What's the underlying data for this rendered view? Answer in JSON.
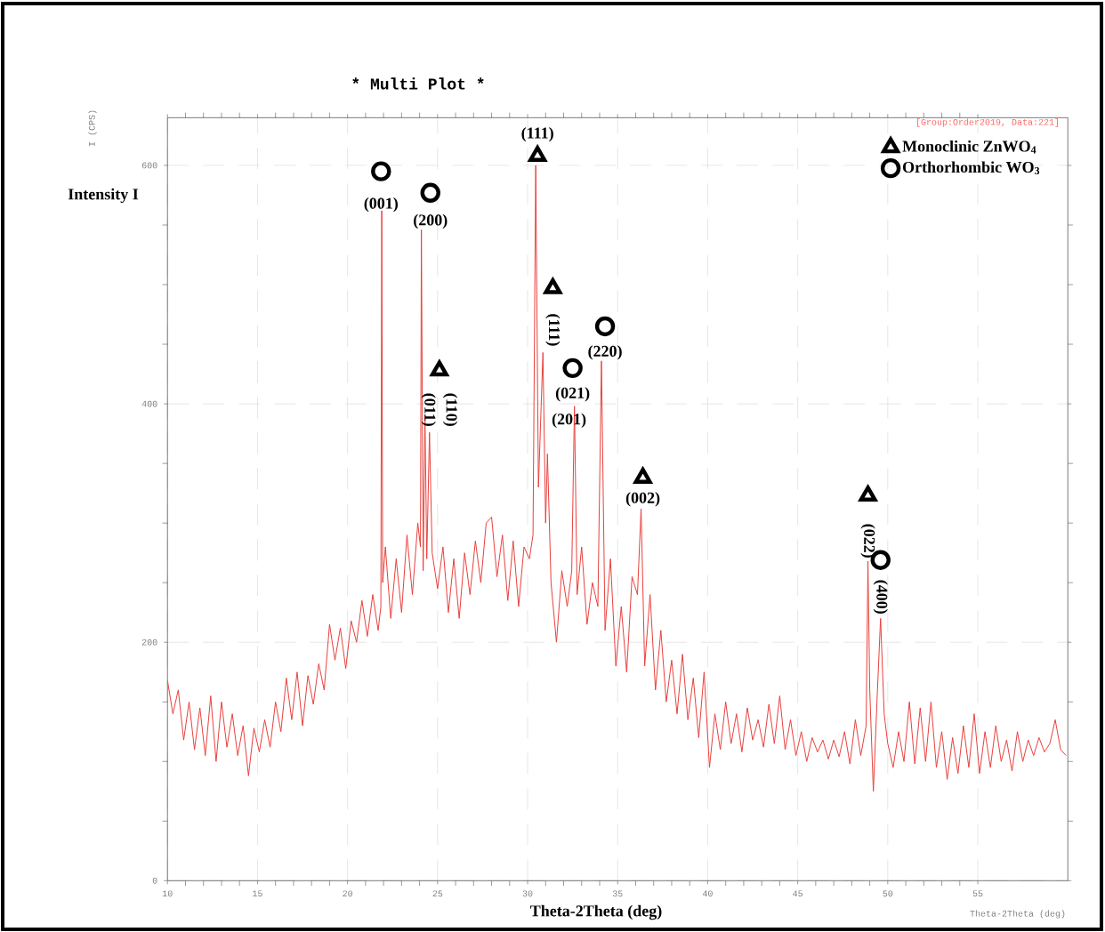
{
  "chart_data": {
    "type": "line",
    "title": "***   Multi Plot   ***",
    "xlabel": "Theta-2Theta (deg)",
    "ylabel": "Intensity I",
    "xlim": [
      10,
      60
    ],
    "ylim": [
      0,
      640
    ],
    "xticks": [
      10,
      15,
      20,
      25,
      30,
      35,
      40,
      45,
      50,
      55
    ],
    "yticks": [
      0,
      200,
      400,
      600
    ],
    "grid": true,
    "legend": "top right",
    "series": [
      {
        "color": "#e8403c",
        "x": [
          10.0,
          10.3,
          10.6,
          10.9,
          11.2,
          11.5,
          11.8,
          12.1,
          12.4,
          12.7,
          13.0,
          13.3,
          13.6,
          13.9,
          14.2,
          14.5,
          14.8,
          15.1,
          15.4,
          15.7,
          16.0,
          16.3,
          16.6,
          16.9,
          17.2,
          17.5,
          17.8,
          18.1,
          18.4,
          18.7,
          19.0,
          19.3,
          19.6,
          19.9,
          20.2,
          20.5,
          20.8,
          21.1,
          21.4,
          21.7,
          21.85,
          21.9,
          21.95,
          22.1,
          22.4,
          22.7,
          23.0,
          23.3,
          23.6,
          23.9,
          24.05,
          24.1,
          24.2,
          24.3,
          24.4,
          24.55,
          24.7,
          25.0,
          25.3,
          25.6,
          25.9,
          26.2,
          26.5,
          26.8,
          27.1,
          27.4,
          27.7,
          28.0,
          28.3,
          28.6,
          28.9,
          29.2,
          29.5,
          29.8,
          30.1,
          30.3,
          30.45,
          30.6,
          30.85,
          31.0,
          31.1,
          31.3,
          31.6,
          31.9,
          32.2,
          32.45,
          32.6,
          32.75,
          33.0,
          33.3,
          33.6,
          33.9,
          34.1,
          34.3,
          34.6,
          34.9,
          35.2,
          35.5,
          35.8,
          36.1,
          36.3,
          36.5,
          36.8,
          37.1,
          37.4,
          37.7,
          38.0,
          38.3,
          38.6,
          38.9,
          39.2,
          39.5,
          39.8,
          40.1,
          40.4,
          40.7,
          41.0,
          41.3,
          41.6,
          41.9,
          42.2,
          42.5,
          42.8,
          43.1,
          43.4,
          43.7,
          44.0,
          44.3,
          44.6,
          44.9,
          45.2,
          45.5,
          45.8,
          46.1,
          46.4,
          46.7,
          47.0,
          47.3,
          47.6,
          47.9,
          48.2,
          48.5,
          48.8,
          48.9,
          49.0,
          49.2,
          49.4,
          49.6,
          49.8,
          50.0,
          50.3,
          50.6,
          50.9,
          51.2,
          51.5,
          51.8,
          52.1,
          52.4,
          52.7,
          53.0,
          53.3,
          53.6,
          53.9,
          54.2,
          54.5,
          54.8,
          55.1,
          55.4,
          55.7,
          56.0,
          56.3,
          56.6,
          56.9,
          57.2,
          57.5,
          57.8,
          58.1,
          58.4,
          58.7,
          59.0,
          59.3,
          59.6,
          59.9
        ],
        "values": [
          168,
          140,
          160,
          118,
          150,
          110,
          145,
          105,
          155,
          100,
          150,
          112,
          140,
          105,
          130,
          88,
          128,
          108,
          135,
          112,
          150,
          125,
          170,
          135,
          175,
          130,
          172,
          148,
          182,
          160,
          215,
          185,
          212,
          178,
          218,
          200,
          235,
          205,
          240,
          210,
          230,
          562,
          250,
          280,
          220,
          270,
          225,
          290,
          240,
          300,
          280,
          546,
          260,
          391,
          270,
          376,
          275,
          245,
          280,
          225,
          270,
          220,
          275,
          240,
          285,
          250,
          300,
          305,
          255,
          290,
          235,
          285,
          230,
          280,
          270,
          290,
          600,
          330,
          443,
          300,
          358,
          250,
          200,
          260,
          230,
          260,
          398,
          240,
          280,
          215,
          250,
          230,
          436,
          210,
          270,
          180,
          230,
          175,
          255,
          240,
          312,
          180,
          240,
          160,
          210,
          150,
          185,
          140,
          190,
          135,
          170,
          120,
          175,
          95,
          140,
          110,
          150,
          115,
          140,
          108,
          145,
          118,
          135,
          112,
          148,
          115,
          155,
          110,
          135,
          105,
          125,
          100,
          120,
          108,
          118,
          102,
          118,
          104,
          125,
          98,
          135,
          105,
          130,
          268,
          160,
          75,
          150,
          220,
          140,
          115,
          95,
          125,
          100,
          150,
          98,
          145,
          100,
          150,
          95,
          125,
          85,
          120,
          90,
          130,
          95,
          140,
          90,
          125,
          95,
          130,
          100,
          118,
          92,
          125,
          100,
          118,
          105,
          120,
          108,
          115,
          135,
          110,
          105
        ]
      },
      {
        "type": "scatter",
        "name": "Monoclinic ZnWO$_{4}$",
        "color": "#000000",
        "marker": "triangle",
        "x": [
          25.1,
          30.55,
          31.4,
          36.4,
          48.9
        ],
        "values": [
          428,
          608,
          497,
          338,
          323
        ]
      },
      {
        "type": "scatter",
        "name": "Orthorhombic WO$_{3}$",
        "color": "#000000",
        "marker": "circle",
        "x": [
          21.86,
          24.6,
          32.5,
          34.3,
          49.6
        ],
        "values": [
          595,
          577,
          430,
          465,
          269
        ]
      }
    ],
    "annotations": [
      "(001)",
      "(200)",
      "(011)",
      "(110)",
      "(111)",
      "(111)",
      "(021)",
      "(201)",
      "(220)",
      "(002)",
      "(022)",
      "(400)",
      "I (CPS)",
      "[Group:Order2019, Data:221]",
      "Theta-2Theta (deg)"
    ]
  }
}
